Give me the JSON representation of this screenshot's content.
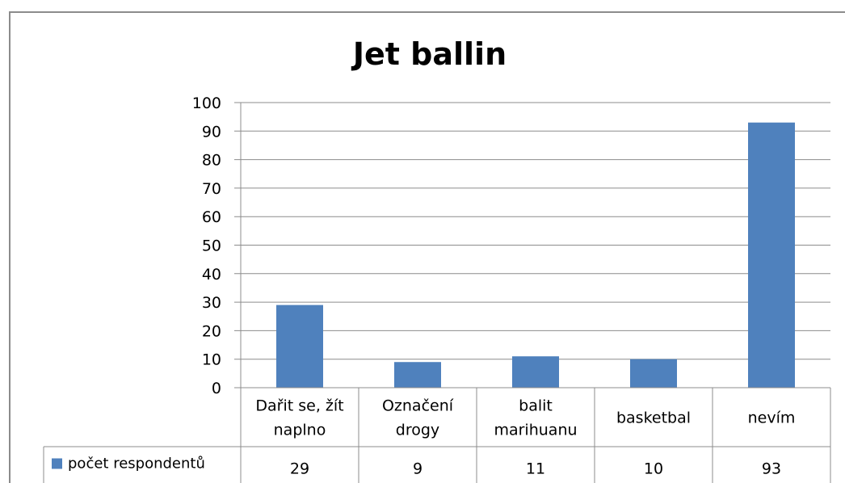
{
  "chart_data": {
    "type": "bar",
    "title": "Jet ballin",
    "categories": [
      [
        "Dařit se, žít",
        "naplno"
      ],
      [
        "Označení",
        "drogy"
      ],
      [
        "balit",
        "marihuanu"
      ],
      [
        "basketbal"
      ],
      [
        "nevím"
      ]
    ],
    "series": [
      {
        "name": "počet respondentů",
        "values": [
          29,
          9,
          11,
          10,
          93
        ],
        "color": "#4f81bd"
      }
    ],
    "ylim": [
      0,
      100
    ],
    "yticks": [
      0,
      10,
      20,
      30,
      40,
      50,
      60,
      70,
      80,
      90,
      100
    ],
    "grid": true,
    "legend": "data-table-left",
    "data_table": true
  }
}
